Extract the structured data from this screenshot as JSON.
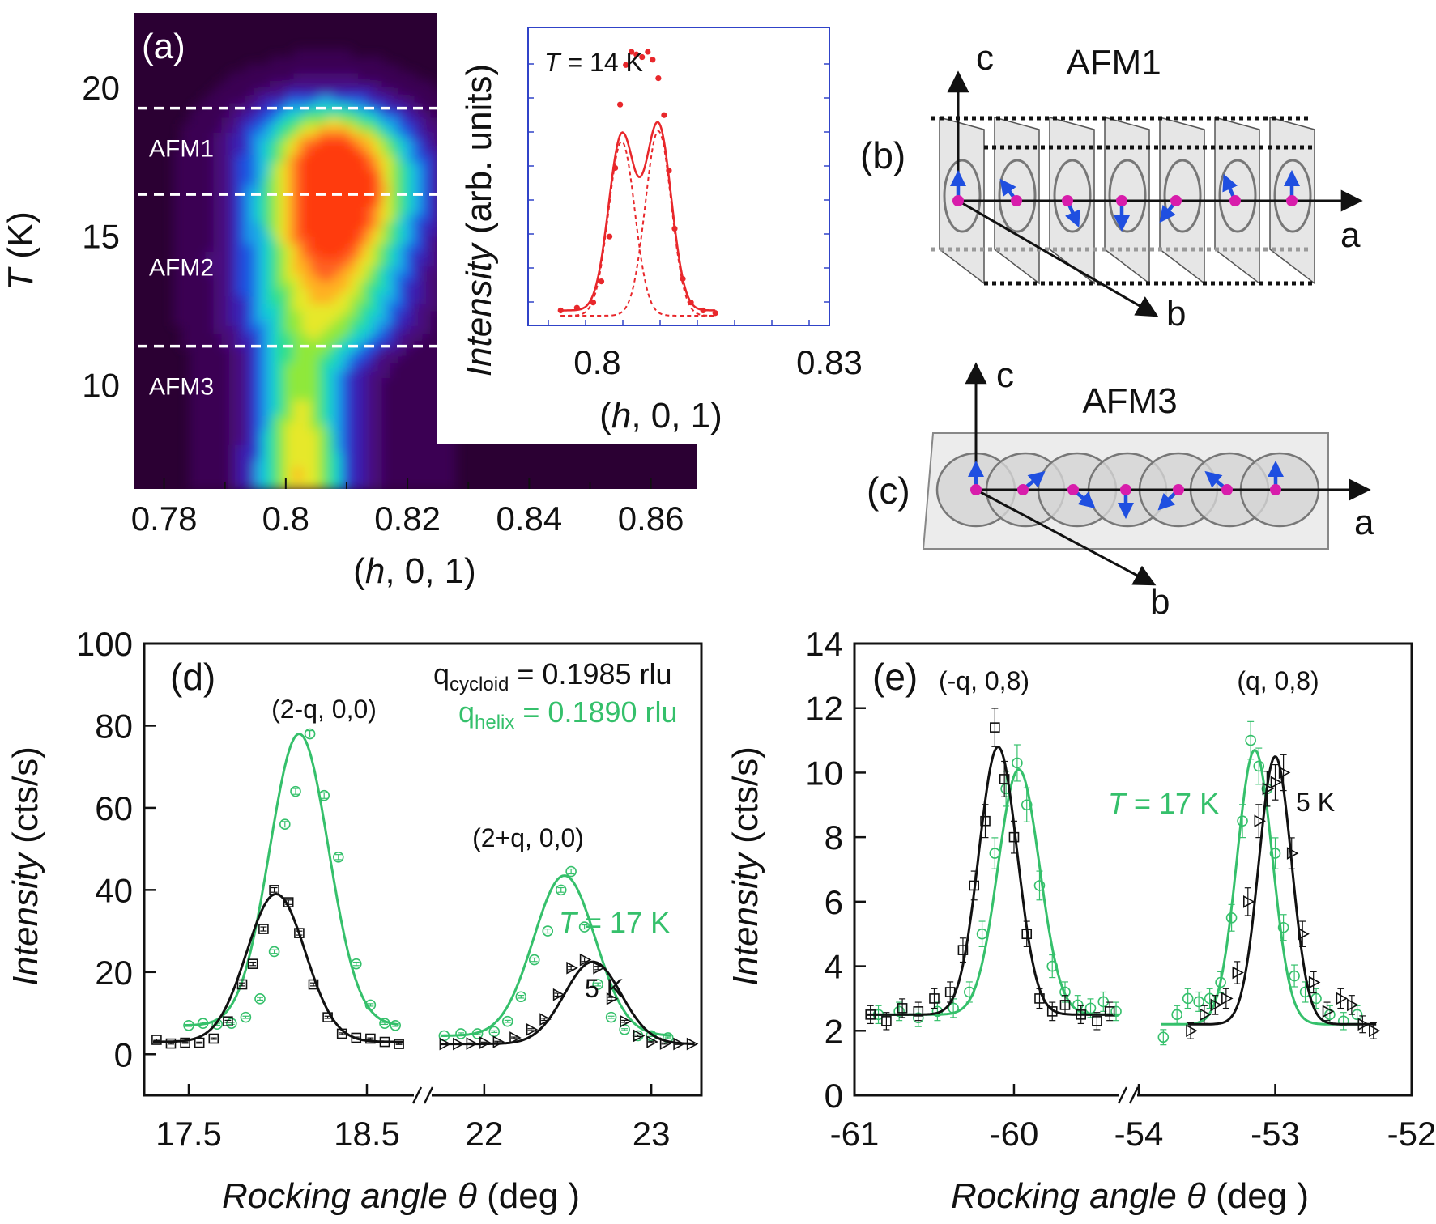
{
  "colors": {
    "green": "#35c06b",
    "black": "#111111",
    "red": "#e8272b",
    "blue_arrow": "#1f4fe0",
    "magenta": "#d81dab",
    "inset_frame": "#3043c8",
    "heatmap_bg": "#2b0033",
    "dashed": "#ffffff"
  },
  "panels": {
    "a": "(a)",
    "b": "(b)",
    "c": "(c)",
    "d": "(d)",
    "e": "(e)"
  },
  "chart_data": [
    {
      "id": "a",
      "type": "heatmap",
      "title": "",
      "xlabel_prefix": "(",
      "xlabel_h": "h",
      "xlabel_suffix": ", 0, 1)",
      "ylabel_T": "T",
      "ylabel_unit": " (K)",
      "xlim": [
        0.775,
        0.8675
      ],
      "ylim": [
        6.5,
        22.5
      ],
      "x_ticks": [
        "0.78",
        "0.8",
        "0.82",
        "0.84",
        "0.86"
      ],
      "x_tick_values": [
        0.78,
        0.8,
        0.82,
        0.84,
        0.86
      ],
      "y_ticks": [
        "10",
        "15",
        "20"
      ],
      "y_tick_values": [
        10,
        15,
        20
      ],
      "phase_boundaries_K": [
        19.3,
        16.4,
        11.3
      ],
      "phase_labels": [
        {
          "text": "AFM1",
          "T": 18.0
        },
        {
          "text": "AFM2",
          "T": 14.0
        },
        {
          "text": "AFM3",
          "T": 10.0
        }
      ],
      "colormap": [
        "#2b0033",
        "#3a0052",
        "#4a0a7a",
        "#3a1fb0",
        "#1f4fe0",
        "#1aa0e8",
        "#17d0d0",
        "#2ee08a",
        "#8fe83a",
        "#e6e82a",
        "#ffb020",
        "#ff6020",
        "#ff3a0a"
      ],
      "intensity_note": "max intensity near h=0.808, T=17 K; single peak near h=0.803 below 11 K"
    },
    {
      "id": "a-inset",
      "type": "line",
      "annotation_T": "T",
      "annotation_value": " = 14 K",
      "ylabel_word": "Intensity",
      "ylabel_unit": " (arb. units)",
      "xlabel_prefix": "(",
      "xlabel_h": "h",
      "xlabel_suffix": ", 0, 1)",
      "xlim": [
        0.7915,
        0.8285
      ],
      "x_ticks": [
        "0.8",
        "0.83"
      ],
      "x_tick_values": [
        0.8,
        0.8285
      ],
      "ylim": [
        0,
        1.0
      ],
      "fit_total": {
        "components": [
          {
            "center": 0.803,
            "amp": 0.66,
            "sigma": 0.0016
          },
          {
            "center": 0.8075,
            "amp": 0.7,
            "sigma": 0.0016
          }
        ],
        "baseline": 0.02
      },
      "points_x": [
        0.7955,
        0.7975,
        0.7995,
        0.8005,
        0.8015,
        0.8022,
        0.8028,
        0.8035,
        0.8042,
        0.8048,
        0.8055,
        0.8062,
        0.8068,
        0.8075,
        0.8082,
        0.8088,
        0.8095,
        0.8105,
        0.8115,
        0.813,
        0.8145
      ],
      "points_y": [
        0.02,
        0.03,
        0.05,
        0.13,
        0.3,
        0.56,
        0.8,
        0.95,
        1.0,
        0.99,
        0.98,
        1.0,
        0.97,
        0.9,
        0.76,
        0.55,
        0.33,
        0.14,
        0.05,
        0.02,
        0.01
      ]
    },
    {
      "id": "d",
      "type": "line",
      "xlabel_word": "Rocking angle ",
      "xlabel_theta": "θ",
      "xlabel_unit": " (deg )",
      "ylabel_word": "Intensity",
      "ylabel_unit": " (cts/s)",
      "ylim": [
        -10,
        100
      ],
      "y_ticks": [
        "0",
        "20",
        "40",
        "60",
        "80",
        "100"
      ],
      "y_tick_values": [
        0,
        20,
        40,
        60,
        80,
        100
      ],
      "segments": [
        {
          "xlim": [
            17.25,
            18.75
          ],
          "ticks": [
            "17.5",
            "18.5"
          ],
          "tick_values": [
            17.5,
            18.5
          ]
        },
        {
          "xlim": [
            21.7,
            23.3
          ],
          "ticks": [
            "22",
            "23"
          ],
          "tick_values": [
            22,
            23
          ]
        }
      ],
      "peak_labels": [
        "(2-q, 0,0)",
        "(2+q, 0,0)"
      ],
      "q_labels": {
        "cycloid_sym": "q",
        "cycloid_sub": "cycloid",
        "cycloid_val": " = 0.1985 rlu",
        "helix_sym": "q",
        "helix_sub": "helix",
        "helix_val": " = 0.1890 rlu"
      },
      "temp_labels": {
        "T": "T",
        "T_val": " = 17 K",
        "low": "5 K"
      },
      "series": [
        {
          "name": "17 K",
          "color": "green",
          "marker": "circle",
          "segment": 0,
          "fit": {
            "center": 18.12,
            "amp": 71.0,
            "sigma": 0.165,
            "baseline": 7.0
          },
          "x": [
            17.5,
            17.58,
            17.66,
            17.74,
            17.82,
            17.9,
            17.98,
            18.04,
            18.1,
            18.18,
            18.26,
            18.34,
            18.44,
            18.52,
            18.6,
            18.66
          ],
          "y": [
            7.0,
            7.5,
            7.3,
            7.5,
            9.0,
            13.5,
            25.0,
            56.0,
            64.0,
            78.0,
            63.0,
            48.0,
            22.0,
            12.0,
            7.5,
            7.0
          ]
        },
        {
          "name": "5 K",
          "color": "black",
          "marker": "square",
          "segment": 0,
          "fit": {
            "center": 17.99,
            "amp": 36.0,
            "sigma": 0.165,
            "baseline": 3.0
          },
          "x": [
            17.32,
            17.4,
            17.48,
            17.56,
            17.64,
            17.72,
            17.8,
            17.86,
            17.92,
            17.98,
            18.06,
            18.12,
            18.2,
            18.28,
            18.36,
            18.44,
            18.52,
            18.6,
            18.68
          ],
          "y": [
            3.5,
            2.6,
            2.8,
            2.8,
            3.8,
            8.0,
            17.0,
            22.0,
            30.5,
            40.0,
            37.0,
            29.5,
            17.0,
            9.0,
            5.0,
            4.0,
            3.8,
            3.0,
            2.5
          ]
        },
        {
          "name": "17 K",
          "color": "green",
          "marker": "circle",
          "segment": 1,
          "fit": {
            "center": 22.48,
            "amp": 39.0,
            "sigma": 0.185,
            "baseline": 4.5
          },
          "x": [
            21.76,
            21.86,
            21.96,
            22.06,
            22.14,
            22.22,
            22.3,
            22.38,
            22.46,
            22.52,
            22.6,
            22.68,
            22.76,
            22.84,
            22.92,
            23.0,
            23.1
          ],
          "y": [
            4.5,
            5.0,
            5.0,
            5.5,
            8.0,
            14.0,
            23.0,
            30.0,
            40.0,
            44.5,
            31.0,
            17.0,
            9.0,
            6.0,
            4.5,
            4.5,
            4.0
          ]
        },
        {
          "name": "5 K",
          "color": "black",
          "marker": "triangle",
          "segment": 1,
          "fit": {
            "center": 22.65,
            "amp": 20.0,
            "sigma": 0.17,
            "baseline": 2.5
          },
          "x": [
            21.76,
            21.84,
            21.92,
            22.0,
            22.08,
            22.18,
            22.28,
            22.36,
            22.44,
            22.52,
            22.6,
            22.68,
            22.76,
            22.84,
            22.92,
            23.0,
            23.08,
            23.16,
            23.24
          ],
          "y": [
            2.5,
            2.5,
            2.6,
            2.8,
            3.0,
            4.0,
            6.0,
            8.5,
            14.5,
            21.0,
            23.0,
            21.0,
            13.5,
            8.0,
            4.5,
            3.0,
            2.6,
            2.5,
            2.5
          ]
        }
      ]
    },
    {
      "id": "e",
      "type": "line",
      "xlabel_word": "Rocking angle ",
      "xlabel_theta": "θ",
      "xlabel_unit": " (deg )",
      "ylabel_word": "Intensity",
      "ylabel_unit": " (cts/s)",
      "ylim": [
        0,
        14
      ],
      "y_ticks": [
        "0",
        "2",
        "4",
        "6",
        "8",
        "10",
        "12",
        "14"
      ],
      "y_tick_values": [
        0,
        2,
        4,
        6,
        8,
        10,
        12,
        14
      ],
      "segments": [
        {
          "xlim": [
            -61.0,
            -59.35
          ],
          "ticks": [
            "-61",
            "-60"
          ],
          "tick_values": [
            -61,
            -60
          ]
        },
        {
          "xlim": [
            -54.0,
            -52.0
          ],
          "ticks": [
            "-54",
            "-53",
            "-52"
          ],
          "tick_values": [
            -54,
            -53,
            -52
          ]
        }
      ],
      "peak_labels": [
        "(-q, 0,8)",
        "(q, 0,8)"
      ],
      "temp_labels": {
        "T": "T",
        "T_val": " = 17 K",
        "low": "5 K"
      },
      "series": [
        {
          "name": "17 K",
          "color": "green",
          "marker": "circle",
          "segment": 0,
          "fit": {
            "center": -59.97,
            "amp": 7.6,
            "sigma": 0.13,
            "baseline": 2.5
          },
          "x": [
            -60.85,
            -60.72,
            -60.6,
            -60.48,
            -60.38,
            -60.28,
            -60.2,
            -60.12,
            -60.05,
            -59.98,
            -59.92,
            -59.84,
            -59.76,
            -59.68,
            -59.6,
            -59.52,
            -59.44,
            -59.36
          ],
          "y": [
            2.5,
            2.6,
            2.4,
            2.6,
            2.7,
            3.2,
            5.0,
            7.5,
            9.5,
            10.3,
            9.0,
            6.5,
            4.0,
            3.2,
            2.8,
            2.7,
            2.9,
            2.6
          ]
        },
        {
          "name": "5 K",
          "color": "black",
          "marker": "square",
          "segment": 0,
          "fit": {
            "center": -60.1,
            "amp": 8.3,
            "sigma": 0.12,
            "baseline": 2.5
          },
          "x": [
            -60.9,
            -60.8,
            -60.7,
            -60.6,
            -60.5,
            -60.4,
            -60.32,
            -60.25,
            -60.18,
            -60.12,
            -60.06,
            -60.0,
            -59.92,
            -59.84,
            -59.76,
            -59.68,
            -59.58,
            -59.48,
            -59.4
          ],
          "y": [
            2.5,
            2.3,
            2.7,
            2.6,
            3.0,
            3.2,
            4.5,
            6.5,
            8.5,
            11.4,
            9.8,
            8.0,
            5.0,
            3.0,
            2.6,
            2.8,
            2.5,
            2.3,
            2.6
          ]
        },
        {
          "name": "17 K",
          "color": "green",
          "marker": "circle",
          "segment": 1,
          "fit": {
            "center": -53.15,
            "amp": 8.5,
            "sigma": 0.13,
            "baseline": 2.2
          },
          "x": [
            -53.82,
            -53.72,
            -53.64,
            -53.56,
            -53.48,
            -53.4,
            -53.32,
            -53.24,
            -53.18,
            -53.12,
            -53.06,
            -53.0,
            -52.94,
            -52.86,
            -52.78,
            -52.7,
            -52.6,
            -52.5,
            -52.4
          ],
          "y": [
            1.8,
            2.5,
            3.0,
            2.9,
            3.0,
            3.5,
            5.5,
            8.5,
            11.0,
            10.2,
            9.5,
            7.5,
            5.2,
            3.7,
            3.2,
            3.0,
            2.5,
            2.3,
            2.5
          ]
        },
        {
          "name": "5 K",
          "color": "black",
          "marker": "triangle",
          "segment": 1,
          "fit": {
            "center": -53.0,
            "amp": 8.3,
            "sigma": 0.12,
            "baseline": 2.2
          },
          "x": [
            -53.62,
            -53.52,
            -53.44,
            -53.36,
            -53.28,
            -53.2,
            -53.12,
            -53.06,
            -53.0,
            -52.94,
            -52.88,
            -52.8,
            -52.72,
            -52.62,
            -52.52,
            -52.44,
            -52.36,
            -52.28
          ],
          "y": [
            2.0,
            2.5,
            2.8,
            3.0,
            3.8,
            6.0,
            8.5,
            9.5,
            9.7,
            10.0,
            7.5,
            5.0,
            3.5,
            2.6,
            3.0,
            2.8,
            2.2,
            2.0
          ]
        }
      ]
    },
    {
      "id": "b",
      "type": "diagram",
      "title": "AFM1",
      "axes": {
        "a": "a",
        "b": "b",
        "c": "c"
      },
      "spin_angles_deg": [
        90,
        135,
        300,
        270,
        225,
        120,
        90
      ]
    },
    {
      "id": "c",
      "type": "diagram",
      "title": "AFM3",
      "axes": {
        "a": "a",
        "b": "b",
        "c": "c"
      },
      "spin_angles_deg": [
        90,
        40,
        320,
        270,
        225,
        140,
        90
      ]
    }
  ]
}
